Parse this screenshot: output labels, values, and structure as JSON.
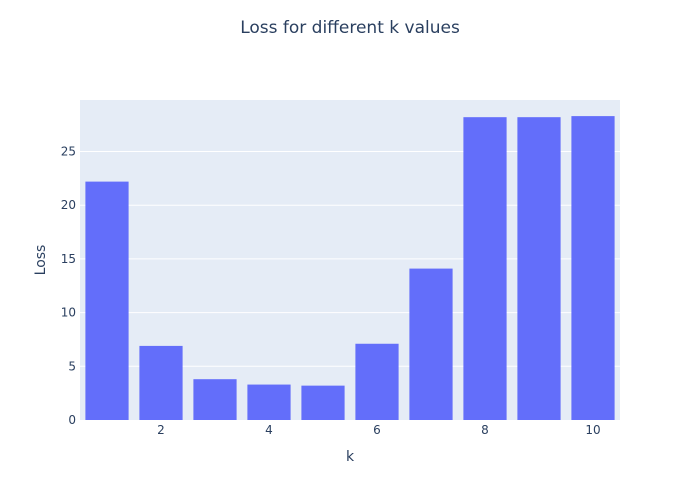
{
  "chart_data": {
    "type": "bar",
    "title": "Loss for different k values",
    "xlabel": "k",
    "ylabel": "Loss",
    "x": [
      1,
      2,
      3,
      4,
      5,
      6,
      7,
      8,
      9,
      10
    ],
    "values": [
      22.2,
      6.9,
      3.8,
      3.3,
      3.2,
      7.1,
      14.1,
      28.2,
      28.2,
      28.3
    ],
    "xlim": [
      0.5,
      10.5
    ],
    "ylim": [
      0,
      29.8
    ],
    "xticks": [
      "2",
      "4",
      "6",
      "8",
      "10"
    ],
    "yticks": [
      "0",
      "5",
      "10",
      "15",
      "20",
      "25"
    ],
    "grid": true,
    "colors": {
      "bar": "#636efa",
      "plot_bg": "#e5ecf6",
      "grid": "#ffffff",
      "text": "#2a3f5f"
    }
  }
}
